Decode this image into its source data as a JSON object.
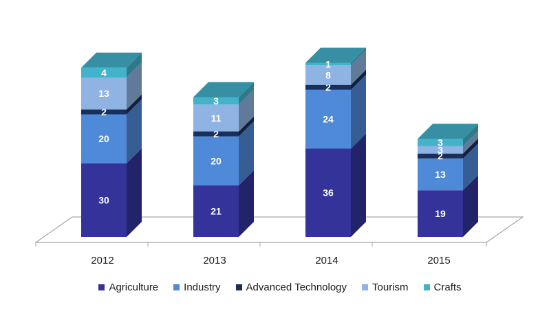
{
  "chart_data": {
    "type": "bar",
    "stacked": true,
    "three_d": true,
    "categories": [
      "2012",
      "2013",
      "2014",
      "2015"
    ],
    "series": [
      {
        "name": "Agriculture",
        "values": [
          30,
          21,
          36,
          19
        ],
        "color": "#33339a"
      },
      {
        "name": "Industry",
        "values": [
          20,
          20,
          24,
          13
        ],
        "color": "#4f8ad9"
      },
      {
        "name": "Advanced Technology",
        "values": [
          2,
          2,
          2,
          2
        ],
        "color": "#1a2f5a"
      },
      {
        "name": "Tourism",
        "values": [
          13,
          11,
          8,
          3
        ],
        "color": "#8fb3e3"
      },
      {
        "name": "Crafts",
        "values": [
          4,
          3,
          1,
          3
        ],
        "color": "#43b3cc"
      }
    ],
    "title": "",
    "xlabel": "",
    "ylabel": "",
    "grid": false,
    "legend_position": "bottom"
  }
}
